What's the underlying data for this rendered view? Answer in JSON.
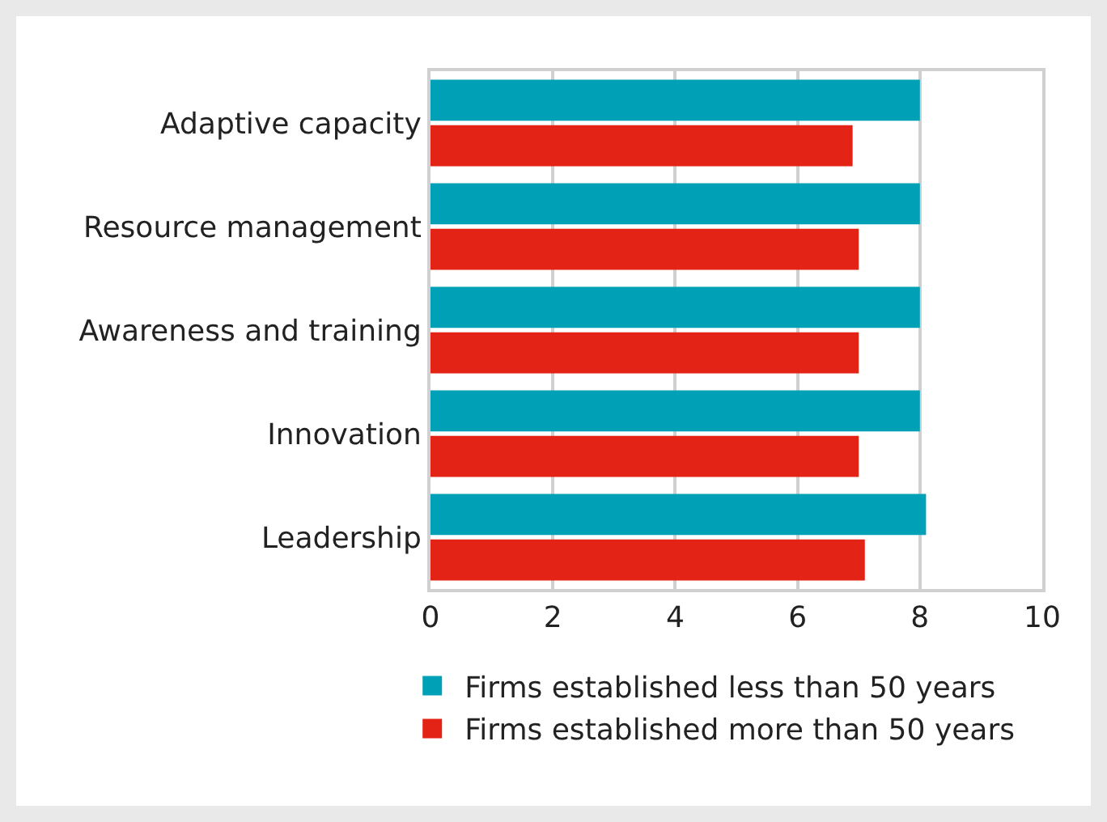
{
  "chart_data": {
    "type": "bar",
    "orientation": "horizontal",
    "categories": [
      "Adaptive capacity",
      "Resource management",
      "Awareness and training",
      "Innovation",
      "Leadership"
    ],
    "series": [
      {
        "name": "Firms established less than 50 years",
        "color": "#00a0b6",
        "values": [
          8,
          8,
          8,
          8,
          8.1
        ]
      },
      {
        "name": "Firms established more than 50 years",
        "color": "#e32315",
        "values": [
          6.9,
          7,
          7,
          7,
          7.1
        ]
      }
    ],
    "xlim": [
      0,
      10
    ],
    "xticks": [
      0,
      2,
      4,
      6,
      8,
      10
    ],
    "grid": "x",
    "legend": "bottom"
  }
}
